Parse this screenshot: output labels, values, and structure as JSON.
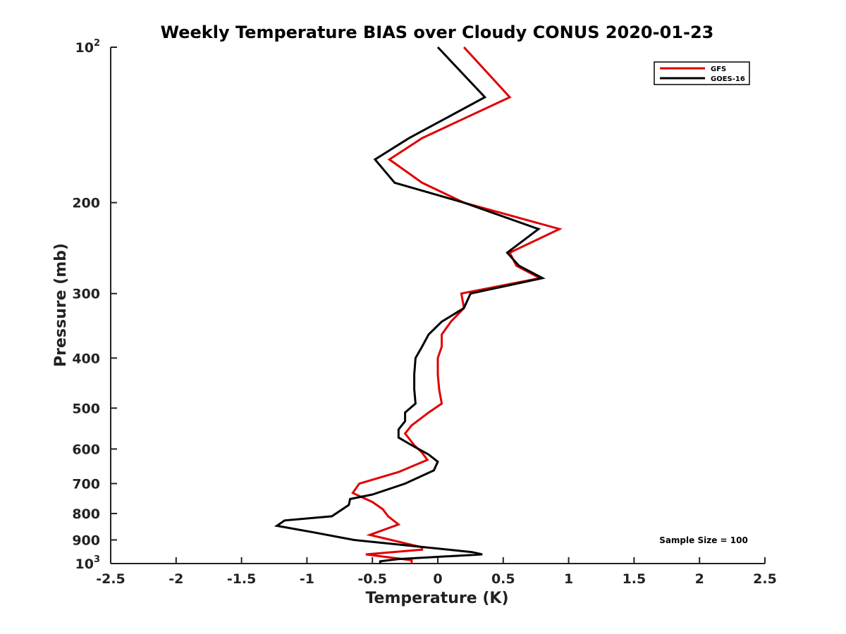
{
  "chart_data": {
    "type": "line",
    "title": "Weekly Temperature BIAS over Cloudy CONUS 2020-01-23",
    "xlabel": "Temperature (K)",
    "ylabel": "Pressure (mb)",
    "xlim": [
      -2.5,
      2.5
    ],
    "ylim": [
      100,
      1000
    ],
    "y_scale": "log",
    "y_reversed": true,
    "x_ticks": [
      -2.5,
      -2,
      -1.5,
      -1,
      -0.5,
      0,
      0.5,
      1,
      1.5,
      2,
      2.5
    ],
    "x_tick_labels": [
      "-2.5",
      "-2",
      "-1.5",
      "-1",
      "-0.5",
      "0",
      "0.5",
      "1",
      "1.5",
      "2",
      "2.5"
    ],
    "y_ticks": [
      100,
      200,
      300,
      400,
      500,
      600,
      700,
      800,
      900,
      1000
    ],
    "y_tick_labels": [
      {
        "base": "10",
        "sup": "2"
      },
      {
        "base": "200",
        "sup": ""
      },
      {
        "base": "300",
        "sup": ""
      },
      {
        "base": "400",
        "sup": ""
      },
      {
        "base": "500",
        "sup": ""
      },
      {
        "base": "600",
        "sup": ""
      },
      {
        "base": "700",
        "sup": ""
      },
      {
        "base": "800",
        "sup": ""
      },
      {
        "base": "900",
        "sup": ""
      },
      {
        "base": "10",
        "sup": "3"
      }
    ],
    "grid": false,
    "legend_position": "top-right",
    "series": [
      {
        "name": "GFS",
        "color": "#e00000",
        "points": [
          {
            "x": 0.2,
            "y": 100
          },
          {
            "x": 0.55,
            "y": 125
          },
          {
            "x": -0.12,
            "y": 150
          },
          {
            "x": -0.37,
            "y": 165
          },
          {
            "x": -0.12,
            "y": 183
          },
          {
            "x": 0.2,
            "y": 200
          },
          {
            "x": 0.93,
            "y": 225
          },
          {
            "x": 0.55,
            "y": 250
          },
          {
            "x": 0.6,
            "y": 265
          },
          {
            "x": 0.78,
            "y": 280
          },
          {
            "x": 0.18,
            "y": 300
          },
          {
            "x": 0.2,
            "y": 320
          },
          {
            "x": 0.1,
            "y": 340
          },
          {
            "x": 0.03,
            "y": 360
          },
          {
            "x": 0.03,
            "y": 380
          },
          {
            "x": 0.0,
            "y": 400
          },
          {
            "x": 0.0,
            "y": 430
          },
          {
            "x": 0.01,
            "y": 460
          },
          {
            "x": 0.03,
            "y": 490
          },
          {
            "x": -0.07,
            "y": 510
          },
          {
            "x": -0.2,
            "y": 540
          },
          {
            "x": -0.25,
            "y": 560
          },
          {
            "x": -0.18,
            "y": 590
          },
          {
            "x": -0.12,
            "y": 610
          },
          {
            "x": -0.08,
            "y": 630
          },
          {
            "x": -0.3,
            "y": 665
          },
          {
            "x": -0.6,
            "y": 700
          },
          {
            "x": -0.65,
            "y": 730
          },
          {
            "x": -0.5,
            "y": 760
          },
          {
            "x": -0.42,
            "y": 785
          },
          {
            "x": -0.38,
            "y": 810
          },
          {
            "x": -0.3,
            "y": 840
          },
          {
            "x": -0.52,
            "y": 880
          },
          {
            "x": -0.12,
            "y": 930
          },
          {
            "x": -0.12,
            "y": 940
          },
          {
            "x": -0.55,
            "y": 960
          },
          {
            "x": -0.2,
            "y": 985
          },
          {
            "x": -0.2,
            "y": 1000
          }
        ]
      },
      {
        "name": "GOES-16",
        "color": "#000000",
        "points": [
          {
            "x": 0.0,
            "y": 100
          },
          {
            "x": 0.36,
            "y": 125
          },
          {
            "x": -0.22,
            "y": 150
          },
          {
            "x": -0.48,
            "y": 165
          },
          {
            "x": -0.33,
            "y": 183
          },
          {
            "x": 0.2,
            "y": 200
          },
          {
            "x": 0.77,
            "y": 225
          },
          {
            "x": 0.53,
            "y": 250
          },
          {
            "x": 0.62,
            "y": 265
          },
          {
            "x": 0.8,
            "y": 280
          },
          {
            "x": 0.25,
            "y": 300
          },
          {
            "x": 0.2,
            "y": 320
          },
          {
            "x": 0.03,
            "y": 340
          },
          {
            "x": -0.07,
            "y": 360
          },
          {
            "x": -0.12,
            "y": 380
          },
          {
            "x": -0.17,
            "y": 400
          },
          {
            "x": -0.18,
            "y": 430
          },
          {
            "x": -0.18,
            "y": 460
          },
          {
            "x": -0.17,
            "y": 490
          },
          {
            "x": -0.25,
            "y": 510
          },
          {
            "x": -0.25,
            "y": 530
          },
          {
            "x": -0.3,
            "y": 550
          },
          {
            "x": -0.3,
            "y": 570
          },
          {
            "x": -0.2,
            "y": 590
          },
          {
            "x": -0.07,
            "y": 615
          },
          {
            "x": 0.0,
            "y": 635
          },
          {
            "x": -0.03,
            "y": 660
          },
          {
            "x": -0.25,
            "y": 700
          },
          {
            "x": -0.5,
            "y": 735
          },
          {
            "x": -0.67,
            "y": 750
          },
          {
            "x": -0.68,
            "y": 770
          },
          {
            "x": -0.81,
            "y": 810
          },
          {
            "x": -1.17,
            "y": 825
          },
          {
            "x": -1.23,
            "y": 845
          },
          {
            "x": -0.95,
            "y": 870
          },
          {
            "x": -0.64,
            "y": 900
          },
          {
            "x": 0.26,
            "y": 950
          },
          {
            "x": 0.34,
            "y": 960
          },
          {
            "x": -0.3,
            "y": 980
          },
          {
            "x": -0.44,
            "y": 990
          },
          {
            "x": -0.44,
            "y": 1000
          }
        ]
      }
    ],
    "annotation": "Sample Size = 100"
  }
}
